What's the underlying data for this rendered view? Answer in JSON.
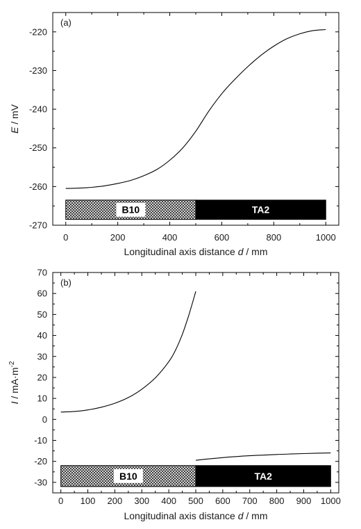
{
  "chart_data": [
    {
      "panel_label": "(a)",
      "type": "line",
      "xlabel_prefix": "Longitudinal axis distance ",
      "xlabel_symbol": "d",
      "xlabel_unit": " / mm",
      "ylabel_symbol": "E",
      "ylabel_unit": " / mV",
      "xlim": [
        -50,
        1050
      ],
      "ylim": [
        -270,
        -215
      ],
      "xticks": [
        0,
        200,
        400,
        600,
        800,
        1000
      ],
      "yticks": [
        -270,
        -260,
        -250,
        -240,
        -230,
        -220
      ],
      "series": [
        {
          "x": [
            0,
            50,
            100,
            150,
            200,
            250,
            300,
            350,
            400,
            450,
            500,
            550,
            600,
            650,
            700,
            750,
            800,
            850,
            900,
            950,
            1000
          ],
          "y": [
            -260.5,
            -260.4,
            -260.2,
            -259.8,
            -259.2,
            -258.4,
            -257.2,
            -255.6,
            -253.2,
            -250.0,
            -245.7,
            -240.5,
            -236.0,
            -232.3,
            -229.0,
            -226.1,
            -223.7,
            -221.8,
            -220.5,
            -219.7,
            -219.4
          ]
        }
      ],
      "regions": [
        {
          "label": "B10",
          "x_start": 0,
          "x_end": 500,
          "fill": "crosshatch"
        },
        {
          "label": "TA2",
          "x_start": 500,
          "x_end": 1000,
          "fill": "black"
        }
      ],
      "region_band_y": [
        -268.5,
        -263.5
      ]
    },
    {
      "panel_label": "(b)",
      "type": "line",
      "xlabel_prefix": "Longitudinal axis distance ",
      "xlabel_symbol": "d",
      "xlabel_unit": " / mm",
      "ylabel_symbol": "I",
      "ylabel_unit": " / mA·m",
      "ylabel_sup": "-2",
      "xlim": [
        -30,
        1030
      ],
      "ylim": [
        -35,
        70
      ],
      "xticks": [
        0,
        100,
        200,
        300,
        400,
        500,
        600,
        700,
        800,
        900,
        1000
      ],
      "yticks": [
        -30,
        -20,
        -10,
        0,
        10,
        20,
        30,
        40,
        50,
        60,
        70
      ],
      "series": [
        {
          "x": [
            0,
            50,
            100,
            150,
            200,
            250,
            300,
            350,
            400,
            425,
            450,
            475,
            500
          ],
          "y": [
            3.5,
            3.8,
            4.5,
            5.8,
            7.7,
            10.4,
            14.4,
            19.8,
            27.5,
            33.0,
            40.5,
            50.0,
            61.0
          ]
        },
        {
          "x": [
            500,
            550,
            600,
            650,
            700,
            750,
            800,
            850,
            900,
            950,
            1000
          ],
          "y": [
            -19.5,
            -18.8,
            -18.2,
            -17.7,
            -17.3,
            -17.0,
            -16.7,
            -16.5,
            -16.3,
            -16.1,
            -16.0
          ]
        }
      ],
      "regions": [
        {
          "label": "B10",
          "x_start": 0,
          "x_end": 500,
          "fill": "crosshatch"
        },
        {
          "label": "TA2",
          "x_start": 500,
          "x_end": 1000,
          "fill": "black"
        }
      ],
      "region_band_y": [
        -32,
        -22
      ]
    }
  ]
}
